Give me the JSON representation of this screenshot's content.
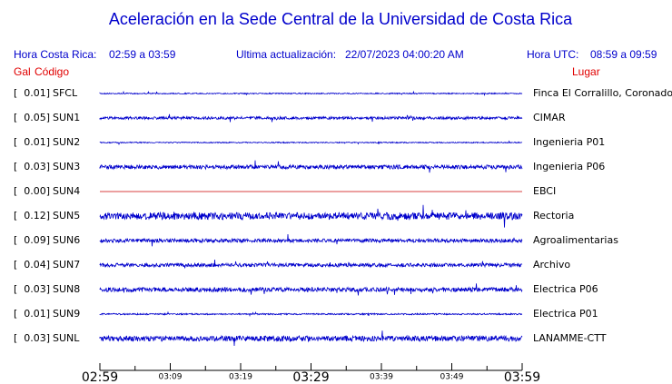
{
  "header": {
    "title": "Aceleración en la Sede Central de la Universidad de Costa Rica",
    "local_time_label": "Hora Costa Rica:",
    "local_time": "02:59 a 03:59",
    "update_label": "Ultima actualización:",
    "update_time": "22/07/2023 04:00:20 AM",
    "utc_label": "Hora UTC:",
    "utc_time": "08:59 a 09:59"
  },
  "columns": {
    "gal": "Gal",
    "code": "Código",
    "place": "Lugar"
  },
  "stations": [
    {
      "gal": "[  0.01]",
      "code": "SFCL",
      "place": "Finca El Corralillo, Coronado",
      "color": "#0000cc"
    },
    {
      "gal": "[  0.05]",
      "code": "SUN1",
      "place": "CIMAR",
      "color": "#0000cc"
    },
    {
      "gal": "[  0.01]",
      "code": "SUN2",
      "place": "Ingenieria P01",
      "color": "#0000cc"
    },
    {
      "gal": "[  0.03]",
      "code": "SUN3",
      "place": "Ingenieria P06",
      "color": "#0000cc"
    },
    {
      "gal": "[  0.00]",
      "code": "SUN4",
      "place": "EBCI",
      "color": "#cc0000"
    },
    {
      "gal": "[  0.12]",
      "code": "SUN5",
      "place": "Rectoria",
      "color": "#0000cc"
    },
    {
      "gal": "[  0.09]",
      "code": "SUN6",
      "place": "Agroalimentarias",
      "color": "#0000cc"
    },
    {
      "gal": "[  0.04]",
      "code": "SUN7",
      "place": "Archivo",
      "color": "#0000cc"
    },
    {
      "gal": "[  0.03]",
      "code": "SUN8",
      "place": "Electrica P06",
      "color": "#0000cc"
    },
    {
      "gal": "[  0.01]",
      "code": "SUN9",
      "place": "Electrica P01",
      "color": "#0000cc"
    },
    {
      "gal": "[  0.03]",
      "code": "SUNL",
      "place": "LANAMME-CTT",
      "color": "#0000cc"
    }
  ],
  "time_axis": [
    {
      "label": "02:59",
      "major": true
    },
    {
      "label": "03:09",
      "major": false
    },
    {
      "label": "03:19",
      "major": false
    },
    {
      "label": "03:29",
      "major": true
    },
    {
      "label": "03:39",
      "major": false
    },
    {
      "label": "03:49",
      "major": false
    },
    {
      "label": "03:59",
      "major": true
    }
  ]
}
